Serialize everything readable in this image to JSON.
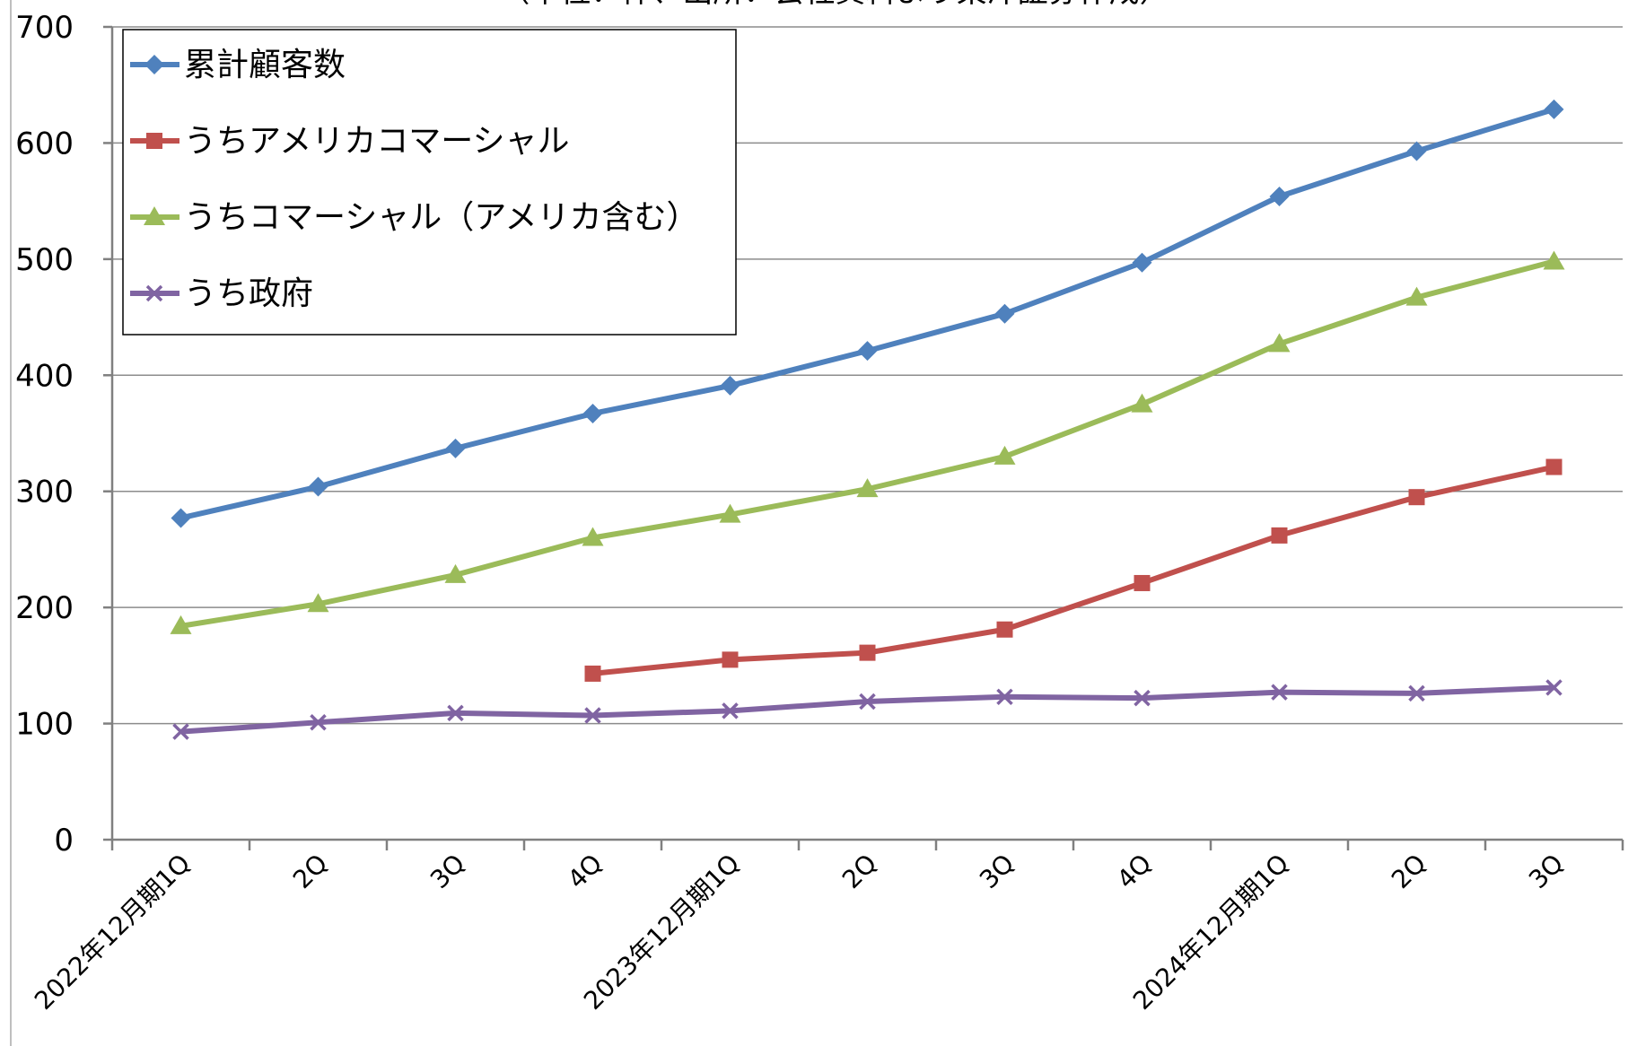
{
  "chart_data": {
    "type": "line",
    "title": "",
    "subtitle": "（単位：件、出所：会社資料より東洋証券作成）",
    "xlabel": "",
    "ylabel": "",
    "categories": [
      "2022年12月期1Q",
      "2Q",
      "3Q",
      "4Q",
      "2023年12月期1Q",
      "2Q",
      "3Q",
      "4Q",
      "2024年12月期1Q",
      "2Q",
      "3Q"
    ],
    "ylim": [
      0,
      700
    ],
    "yticks": [
      0,
      100,
      200,
      300,
      400,
      500,
      600,
      700
    ],
    "grid": true,
    "legend_position": "top-left",
    "series": [
      {
        "name": "累計顧客数",
        "color": "#4F81BD",
        "marker": "diamond",
        "values": [
          277,
          304,
          337,
          367,
          391,
          421,
          453,
          497,
          554,
          593,
          629
        ]
      },
      {
        "name": "うちアメリカコマーシャル",
        "color": "#C0504D",
        "marker": "square",
        "values": [
          null,
          null,
          null,
          143,
          155,
          161,
          181,
          221,
          262,
          295,
          321
        ]
      },
      {
        "name": "うちコマーシャル（アメリカ含む）",
        "color": "#9BBB59",
        "marker": "triangle",
        "values": [
          184,
          203,
          228,
          260,
          280,
          302,
          330,
          375,
          427,
          467,
          498
        ]
      },
      {
        "name": "うち政府",
        "color": "#8064A2",
        "marker": "x",
        "values": [
          93,
          101,
          109,
          107,
          111,
          119,
          123,
          122,
          127,
          126,
          131
        ]
      }
    ]
  }
}
